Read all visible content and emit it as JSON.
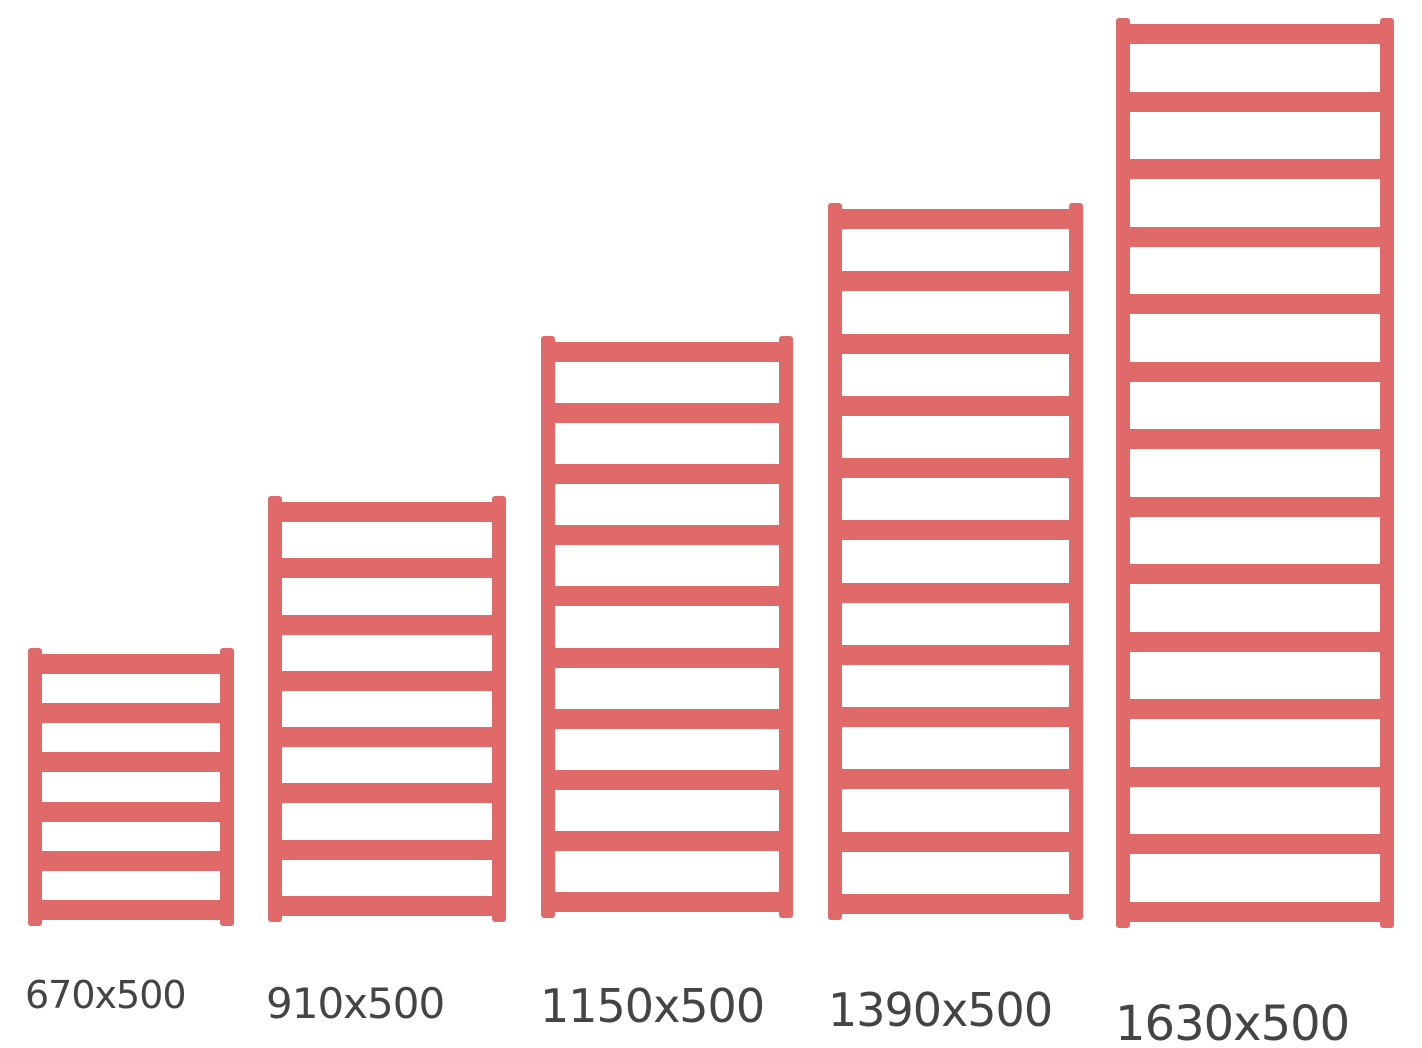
{
  "colors": {
    "rail": "#e06a6a",
    "label": "#444444",
    "background": "#ffffff"
  },
  "radiators": [
    {
      "label": "670x500",
      "height_mm": 670,
      "width_mm": 500,
      "bar_count": 6
    },
    {
      "label": "910x500",
      "height_mm": 910,
      "width_mm": 500,
      "bar_count": 8
    },
    {
      "label": "1150x500",
      "height_mm": 1150,
      "width_mm": 500,
      "bar_count": 10
    },
    {
      "label": "1390x500",
      "height_mm": 1390,
      "width_mm": 500,
      "bar_count": 12
    },
    {
      "label": "1630x500",
      "height_mm": 1630,
      "width_mm": 500,
      "bar_count": 14
    }
  ]
}
